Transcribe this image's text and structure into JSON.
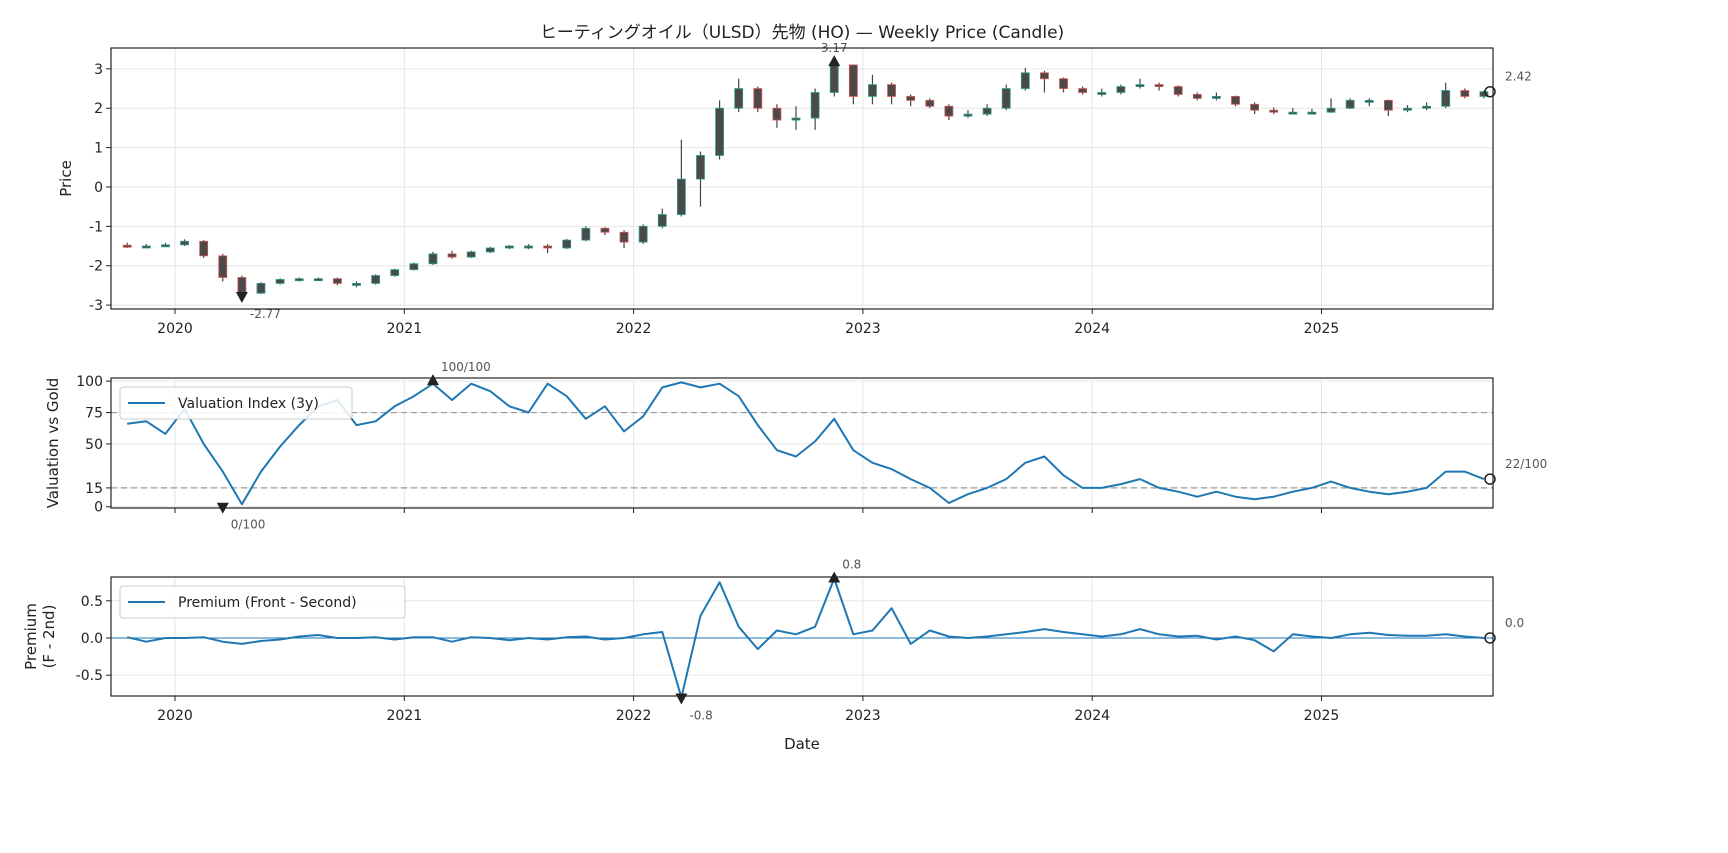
{
  "chart_data": [
    {
      "type": "candlestick",
      "title": "ヒーティングオイル（ULSD）先物 (HO) — Weekly Price (Candle)",
      "ylabel": "Price",
      "xlabel": "",
      "ylim": [
        -3.1,
        3.53
      ],
      "yticks": [
        "3",
        "2",
        "1",
        "0",
        "-1",
        "-2",
        "-3"
      ],
      "ytick_values": [
        3,
        2,
        1,
        0,
        -1,
        -2,
        -3
      ],
      "xticks": [
        "2020",
        "2021",
        "2022",
        "2023",
        "2024",
        "2025"
      ],
      "grid": true,
      "colors": {
        "up": "#2a9d8f",
        "down": "#d9534f",
        "body": "#4a4a4a"
      },
      "candles_monthly_ohlc": [
        [
          "2019-10",
          -1.48,
          -1.42,
          -1.55,
          -1.5
        ],
        [
          "2019-11",
          -1.5,
          -1.45,
          -1.54,
          -1.5
        ],
        [
          "2019-12",
          -1.5,
          -1.42,
          -1.52,
          -1.47
        ],
        [
          "2020-01",
          -1.47,
          -1.33,
          -1.5,
          -1.38
        ],
        [
          "2020-02",
          -1.38,
          -1.35,
          -1.8,
          -1.75
        ],
        [
          "2020-03",
          -1.75,
          -1.7,
          -2.4,
          -2.3
        ],
        [
          "2020-04",
          -2.3,
          -2.25,
          -2.77,
          -2.7
        ],
        [
          "2020-05",
          -2.7,
          -2.42,
          -2.72,
          -2.45
        ],
        [
          "2020-06",
          -2.45,
          -2.32,
          -2.48,
          -2.35
        ],
        [
          "2020-07",
          -2.35,
          -2.3,
          -2.4,
          -2.33
        ],
        [
          "2020-08",
          -2.33,
          -2.3,
          -2.38,
          -2.33
        ],
        [
          "2020-09",
          -2.33,
          -2.3,
          -2.5,
          -2.45
        ],
        [
          "2020-10",
          -2.45,
          -2.4,
          -2.55,
          -2.45
        ],
        [
          "2020-11",
          -2.45,
          -2.22,
          -2.48,
          -2.25
        ],
        [
          "2020-12",
          -2.25,
          -2.08,
          -2.28,
          -2.1
        ],
        [
          "2021-01",
          -2.1,
          -1.92,
          -2.12,
          -1.95
        ],
        [
          "2021-02",
          -1.95,
          -1.65,
          -1.98,
          -1.7
        ],
        [
          "2021-03",
          -1.7,
          -1.62,
          -1.82,
          -1.78
        ],
        [
          "2021-04",
          -1.78,
          -1.62,
          -1.8,
          -1.65
        ],
        [
          "2021-05",
          -1.65,
          -1.52,
          -1.68,
          -1.55
        ],
        [
          "2021-06",
          -1.55,
          -1.48,
          -1.58,
          -1.5
        ],
        [
          "2021-07",
          -1.5,
          -1.45,
          -1.58,
          -1.5
        ],
        [
          "2021-08",
          -1.5,
          -1.45,
          -1.68,
          -1.55
        ],
        [
          "2021-09",
          -1.55,
          -1.32,
          -1.58,
          -1.35
        ],
        [
          "2021-10",
          -1.35,
          -1.0,
          -1.38,
          -1.05
        ],
        [
          "2021-11",
          -1.05,
          -1.02,
          -1.22,
          -1.15
        ],
        [
          "2021-12",
          -1.15,
          -1.1,
          -1.55,
          -1.4
        ],
        [
          "2022-01",
          -1.4,
          -0.95,
          -1.45,
          -1.0
        ],
        [
          "2022-02",
          -1.0,
          -0.55,
          -1.05,
          -0.7
        ],
        [
          "2022-03",
          -0.7,
          1.2,
          -0.75,
          0.2
        ],
        [
          "2022-04",
          0.2,
          0.9,
          -0.5,
          0.8
        ],
        [
          "2022-05",
          0.8,
          2.2,
          0.7,
          2.0
        ],
        [
          "2022-06",
          2.0,
          2.75,
          1.9,
          2.5
        ],
        [
          "2022-07",
          2.5,
          2.55,
          1.9,
          2.0
        ],
        [
          "2022-08",
          2.0,
          2.1,
          1.5,
          1.7
        ],
        [
          "2022-09",
          1.7,
          2.05,
          1.45,
          1.75
        ],
        [
          "2022-10",
          1.75,
          2.5,
          1.45,
          2.4
        ],
        [
          "2022-11",
          2.4,
          3.17,
          2.3,
          3.1
        ],
        [
          "2022-12",
          3.1,
          3.05,
          2.1,
          2.3
        ],
        [
          "2023-01",
          2.3,
          2.85,
          2.1,
          2.6
        ],
        [
          "2023-02",
          2.6,
          2.65,
          2.1,
          2.3
        ],
        [
          "2023-03",
          2.3,
          2.35,
          2.05,
          2.2
        ],
        [
          "2023-04",
          2.2,
          2.25,
          2.0,
          2.05
        ],
        [
          "2023-05",
          2.05,
          2.1,
          1.7,
          1.8
        ],
        [
          "2023-06",
          1.8,
          1.95,
          1.75,
          1.85
        ],
        [
          "2023-07",
          1.85,
          2.1,
          1.8,
          2.0
        ],
        [
          "2023-08",
          2.0,
          2.6,
          1.95,
          2.5
        ],
        [
          "2023-09",
          2.5,
          3.02,
          2.45,
          2.9
        ],
        [
          "2023-10",
          2.9,
          2.95,
          2.4,
          2.75
        ],
        [
          "2023-11",
          2.75,
          2.78,
          2.4,
          2.5
        ],
        [
          "2023-12",
          2.5,
          2.55,
          2.35,
          2.4
        ],
        [
          "2024-01",
          2.4,
          2.5,
          2.3,
          2.4
        ],
        [
          "2024-02",
          2.4,
          2.6,
          2.35,
          2.55
        ],
        [
          "2024-03",
          2.55,
          2.75,
          2.5,
          2.6
        ],
        [
          "2024-04",
          2.6,
          2.65,
          2.45,
          2.55
        ],
        [
          "2024-05",
          2.55,
          2.58,
          2.3,
          2.35
        ],
        [
          "2024-06",
          2.35,
          2.4,
          2.2,
          2.25
        ],
        [
          "2024-07",
          2.25,
          2.4,
          2.2,
          2.3
        ],
        [
          "2024-08",
          2.3,
          2.32,
          2.05,
          2.1
        ],
        [
          "2024-09",
          2.1,
          2.15,
          1.85,
          1.95
        ],
        [
          "2024-10",
          1.95,
          2.02,
          1.85,
          1.9
        ],
        [
          "2024-11",
          1.9,
          2.0,
          1.85,
          1.9
        ],
        [
          "2024-12",
          1.9,
          1.98,
          1.85,
          1.9
        ],
        [
          "2025-01",
          1.9,
          2.25,
          1.88,
          2.0
        ],
        [
          "2025-02",
          2.0,
          2.25,
          1.98,
          2.2
        ],
        [
          "2025-03",
          2.2,
          2.25,
          2.05,
          2.2
        ],
        [
          "2025-04",
          2.2,
          2.22,
          1.8,
          1.95
        ],
        [
          "2025-05",
          1.95,
          2.08,
          1.9,
          2.0
        ],
        [
          "2025-06",
          2.0,
          2.15,
          1.95,
          2.05
        ],
        [
          "2025-07",
          2.05,
          2.65,
          2.0,
          2.45
        ],
        [
          "2025-08",
          2.45,
          2.5,
          2.25,
          2.3
        ],
        [
          "2025-09",
          2.3,
          2.45,
          2.25,
          2.42
        ]
      ],
      "annotations": {
        "max": {
          "date": "2022-11",
          "value": 3.17,
          "label": "3.17"
        },
        "min": {
          "date": "2020-04",
          "value": -2.77,
          "label": "-2.77"
        },
        "last": {
          "date": "2025-09",
          "value": 2.42,
          "label": "2.42"
        }
      }
    },
    {
      "type": "line",
      "ylabel": "Valuation vs Gold",
      "ylim": [
        -1,
        102.5
      ],
      "yticks": [
        "100",
        "75",
        "50",
        "15",
        "0"
      ],
      "ytick_values": [
        100,
        75,
        50,
        15,
        0
      ],
      "reference_lines": [
        75,
        15
      ],
      "legend": {
        "label": "Valuation Index (3y)",
        "placement": "upper-left"
      },
      "color": "#1f77b4",
      "dates": [
        "2019-10",
        "2019-11",
        "2019-12",
        "2020-01",
        "2020-02",
        "2020-03",
        "2020-04",
        "2020-05",
        "2020-06",
        "2020-07",
        "2020-08",
        "2020-09",
        "2020-10",
        "2020-11",
        "2020-12",
        "2021-01",
        "2021-02",
        "2021-03",
        "2021-04",
        "2021-05",
        "2021-06",
        "2021-07",
        "2021-08",
        "2021-09",
        "2021-10",
        "2021-11",
        "2021-12",
        "2022-01",
        "2022-02",
        "2022-03",
        "2022-04",
        "2022-05",
        "2022-06",
        "2022-07",
        "2022-08",
        "2022-09",
        "2022-10",
        "2022-11",
        "2022-12",
        "2023-01",
        "2023-02",
        "2023-03",
        "2023-04",
        "2023-05",
        "2023-06",
        "2023-07",
        "2023-08",
        "2023-09",
        "2023-10",
        "2023-11",
        "2023-12",
        "2024-01",
        "2024-02",
        "2024-03",
        "2024-04",
        "2024-05",
        "2024-06",
        "2024-07",
        "2024-08",
        "2024-09",
        "2024-10",
        "2024-11",
        "2024-12",
        "2025-01",
        "2025-02",
        "2025-03",
        "2025-04",
        "2025-05",
        "2025-06",
        "2025-07",
        "2025-08",
        "2025-09"
      ],
      "values": [
        66,
        68,
        58,
        78,
        50,
        28,
        2,
        28,
        48,
        65,
        80,
        85,
        65,
        68,
        80,
        88,
        98,
        85,
        98,
        92,
        80,
        75,
        98,
        88,
        70,
        80,
        60,
        72,
        95,
        99,
        95,
        98,
        88,
        65,
        45,
        40,
        52,
        70,
        45,
        35,
        30,
        22,
        15,
        3,
        10,
        15,
        22,
        35,
        40,
        25,
        15,
        15,
        18,
        22,
        15,
        12,
        8,
        12,
        8,
        6,
        8,
        12,
        15,
        20,
        15,
        12,
        10,
        12,
        15,
        28,
        28,
        22
      ],
      "annotations": {
        "max": {
          "date": "2021-02",
          "value": 100,
          "label": "100/100"
        },
        "min": {
          "date": "2020-03",
          "value": 0,
          "label": "0/100"
        },
        "last": {
          "date": "2025-09",
          "value": 22,
          "label": "22/100"
        }
      }
    },
    {
      "type": "line",
      "ylabel": "Premium\n(F - 2nd)",
      "ylabel_lines": [
        "Premium",
        "(F - 2nd)"
      ],
      "xlabel": "Date",
      "ylim": [
        -0.78,
        0.82
      ],
      "yticks": [
        "0.5",
        "0.0",
        "-0.5"
      ],
      "ytick_values": [
        0.5,
        0,
        -0.5
      ],
      "xticks": [
        "2020",
        "2021",
        "2022",
        "2023",
        "2024",
        "2025"
      ],
      "legend": {
        "label": "Premium (Front - Second)",
        "placement": "upper-left"
      },
      "color": "#1f77b4",
      "dates": [
        "2019-10",
        "2019-11",
        "2019-12",
        "2020-01",
        "2020-02",
        "2020-03",
        "2020-04",
        "2020-05",
        "2020-06",
        "2020-07",
        "2020-08",
        "2020-09",
        "2020-10",
        "2020-11",
        "2020-12",
        "2021-01",
        "2021-02",
        "2021-03",
        "2021-04",
        "2021-05",
        "2021-06",
        "2021-07",
        "2021-08",
        "2021-09",
        "2021-10",
        "2021-11",
        "2021-12",
        "2022-01",
        "2022-02",
        "2022-03",
        "2022-04",
        "2022-05",
        "2022-06",
        "2022-07",
        "2022-08",
        "2022-09",
        "2022-10",
        "2022-11",
        "2022-12",
        "2023-01",
        "2023-02",
        "2023-03",
        "2023-04",
        "2023-05",
        "2023-06",
        "2023-07",
        "2023-08",
        "2023-09",
        "2023-10",
        "2023-11",
        "2023-12",
        "2024-01",
        "2024-02",
        "2024-03",
        "2024-04",
        "2024-05",
        "2024-06",
        "2024-07",
        "2024-08",
        "2024-09",
        "2024-10",
        "2024-11",
        "2024-12",
        "2025-01",
        "2025-02",
        "2025-03",
        "2025-04",
        "2025-05",
        "2025-06",
        "2025-07",
        "2025-08",
        "2025-09"
      ],
      "values": [
        0.01,
        -0.05,
        0.0,
        0.0,
        0.01,
        -0.05,
        -0.08,
        -0.04,
        -0.02,
        0.02,
        0.04,
        0.0,
        0.0,
        0.01,
        -0.02,
        0.01,
        0.01,
        -0.05,
        0.01,
        0.0,
        -0.03,
        0.0,
        -0.02,
        0.01,
        0.02,
        -0.02,
        0.0,
        0.05,
        0.08,
        -0.8,
        0.3,
        0.75,
        0.15,
        -0.15,
        0.1,
        0.05,
        0.15,
        0.8,
        0.05,
        0.1,
        0.4,
        -0.08,
        0.1,
        0.02,
        0.0,
        0.02,
        0.05,
        0.08,
        0.12,
        0.08,
        0.05,
        0.02,
        0.05,
        0.12,
        0.05,
        0.02,
        0.03,
        -0.02,
        0.02,
        -0.03,
        -0.18,
        0.05,
        0.02,
        0.0,
        0.05,
        0.07,
        0.04,
        0.03,
        0.03,
        0.05,
        0.02,
        0.0
      ],
      "annotations": {
        "max": {
          "date": "2022-11",
          "value": 0.8,
          "label": "0.8"
        },
        "min": {
          "date": "2022-03",
          "value": -0.8,
          "label": "-0.8"
        },
        "last": {
          "date": "2025-09",
          "value": 0.0,
          "label": "0.0"
        }
      }
    }
  ]
}
